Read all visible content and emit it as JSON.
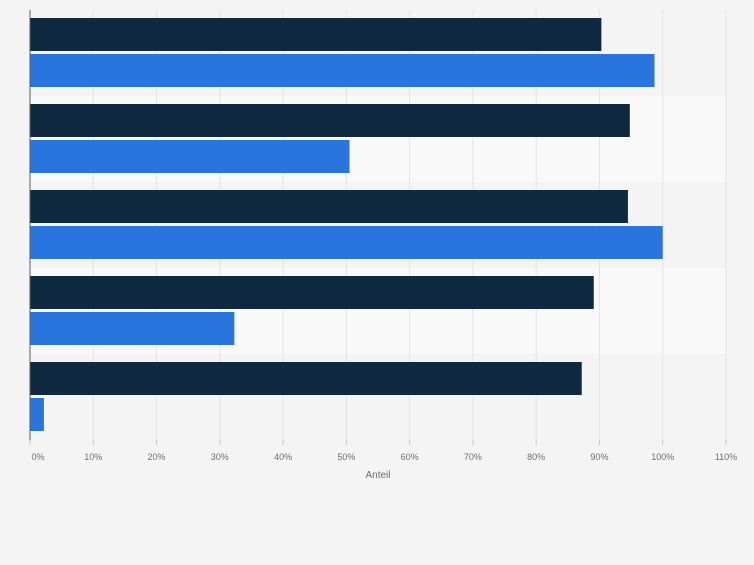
{
  "chart_data": {
    "type": "bar",
    "orientation": "horizontal",
    "categories": [
      "",
      "",
      "",
      "",
      ""
    ],
    "series": [
      {
        "color": "#0f2941",
        "values": [
          90.3,
          94.8,
          94.5,
          89.1,
          87.2
        ]
      },
      {
        "color": "#2876dd",
        "values": [
          98.7,
          50.5,
          100.0,
          32.3,
          2.2
        ]
      }
    ],
    "xlim": [
      0,
      110
    ],
    "xticks": [
      "0%",
      "10%",
      "20%",
      "30%",
      "40%",
      "50%",
      "60%",
      "70%",
      "80%",
      "90%",
      "100%",
      "110%"
    ],
    "xlabel": "Anteil",
    "ylabel": "",
    "title": "",
    "grid": true,
    "legend": "none"
  }
}
